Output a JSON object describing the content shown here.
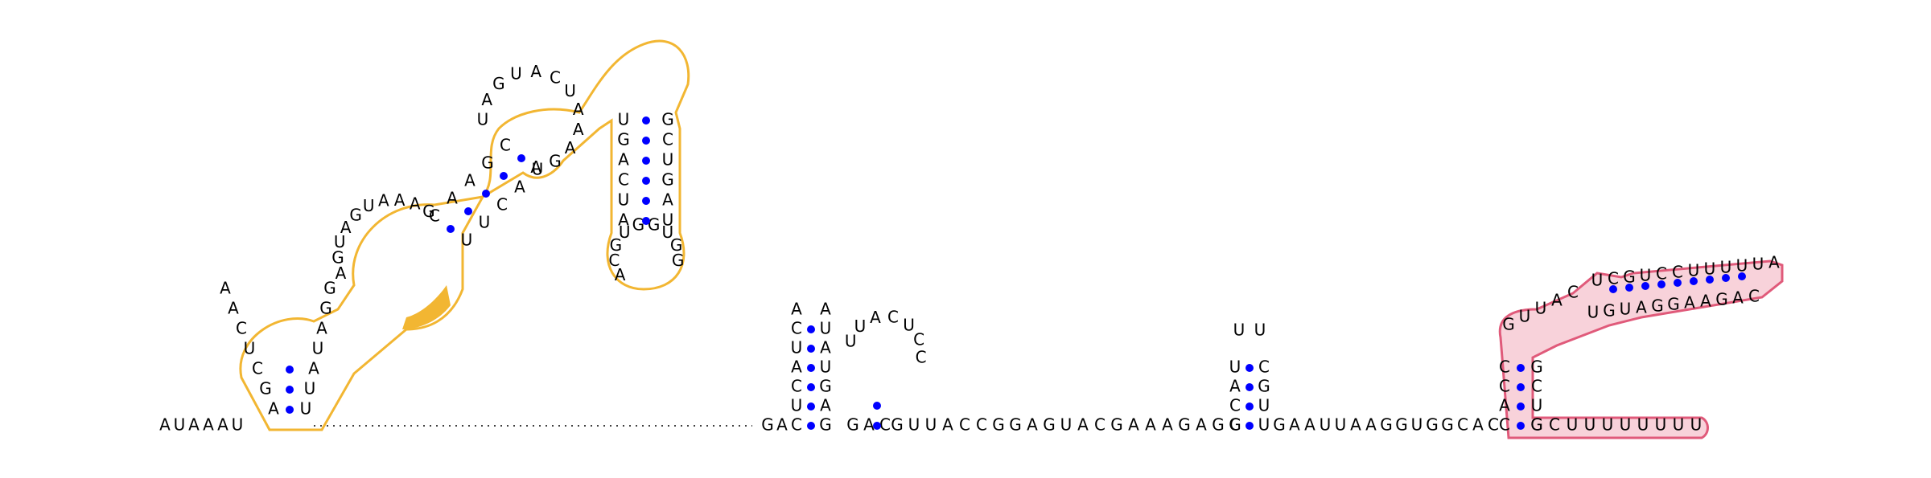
{
  "diagram": {
    "type": "rna-secondary-structure",
    "sequence_5prime_unpaired": [
      "A",
      "U",
      "A",
      "A",
      "A",
      "U"
    ],
    "sequence_3prime_tail": [
      "G",
      "C",
      "U",
      "U",
      "U",
      "U",
      "U",
      "U",
      "U",
      "U"
    ],
    "colors": {
      "base_text": "#000000",
      "pair_dot": "#0000ff",
      "backbone": "#000000",
      "orange_highlight_stroke": "#f2b632",
      "orange_highlight_fill": "#f2b632",
      "pink_highlight_stroke": "#e05a7a",
      "pink_highlight_fill": "#f8d2da"
    },
    "hairpin_1": {
      "left_strand": [
        "A",
        "G",
        "C",
        "U",
        "C",
        "A",
        "A"
      ],
      "loop": [
        "A",
        "A"
      ],
      "right_strand": [
        "U",
        "U",
        "A",
        "U",
        "A",
        "G",
        "G"
      ],
      "link": [
        "G",
        "A",
        "C"
      ]
    },
    "hairpin_2": {
      "internal": [
        "U",
        "U",
        "A",
        "C",
        "U",
        "C",
        "C",
        "A",
        "C"
      ],
      "pairs": [
        "G",
        "C"
      ]
    },
    "hairpin_3": {
      "left": [
        "G",
        "C",
        "A",
        "U"
      ],
      "loop": [
        "U",
        "U"
      ],
      "right": [
        "U",
        "U",
        "G",
        "C"
      ]
    },
    "linker": [
      "G",
      "U",
      "U",
      "A",
      "C",
      "C",
      "G",
      "G",
      "A",
      "G",
      "U",
      "A",
      "C",
      "G",
      "A",
      "A",
      "A",
      "G",
      "A",
      "G",
      "C"
    ],
    "linker_2": [
      "G",
      "A",
      "A",
      "U",
      "U",
      "A",
      "A",
      "G",
      "G",
      "U",
      "G",
      "G",
      "C",
      "A",
      "C"
    ],
    "pink_region": {
      "stem_left": [
        "C",
        "A",
        "C",
        "C"
      ],
      "stem_right": [
        "G",
        "U",
        "C",
        "G"
      ],
      "long_top": [
        "U",
        "C",
        "G",
        "U",
        "C",
        "C",
        "U",
        "U",
        "U",
        "U",
        "U",
        "A"
      ],
      "long_bottom": [
        "C",
        "A",
        "G",
        "A",
        "A",
        "G",
        "G",
        "A",
        "U",
        "G",
        "U"
      ],
      "bulge": [
        "G",
        "U",
        "U",
        "A",
        "C"
      ]
    }
  }
}
